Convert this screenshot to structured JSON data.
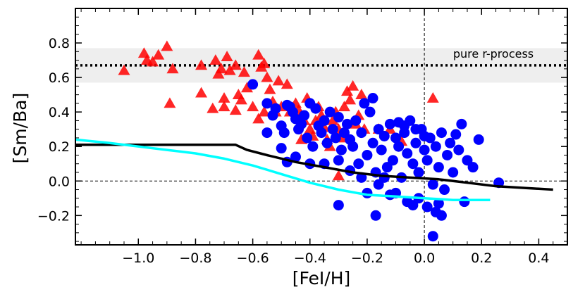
{
  "chart_data": {
    "type": "scatter",
    "xlabel": "[FeI/H]",
    "ylabel": "[Sm/Ba]",
    "xlim": [
      -1.22,
      0.5
    ],
    "ylim": [
      -0.37,
      1.0
    ],
    "x_ticks": [
      -1.0,
      -0.8,
      -0.6,
      -0.4,
      -0.2,
      0.0,
      0.2,
      0.4
    ],
    "x_tick_labels": [
      "−1.0",
      "−0.8",
      "−0.6",
      "−0.4",
      "−0.2",
      "0.0",
      "0.2",
      "0.4"
    ],
    "y_ticks": [
      -0.2,
      0.0,
      0.2,
      0.4,
      0.6,
      0.8
    ],
    "y_tick_labels": [
      "−0.2",
      "0.0",
      "0.2",
      "0.4",
      "0.6",
      "0.8"
    ],
    "grid": false,
    "reference_lines": {
      "horizontal": 0.0,
      "vertical": 0.0
    },
    "band": {
      "y_low": 0.57,
      "y_high": 0.77,
      "color": "#eeeeee"
    },
    "pure_r_process": {
      "y": 0.67,
      "label": "pure r-process"
    },
    "colors": {
      "circles": "#0000ff",
      "triangles": "#ff0000",
      "black_curve": "#000000",
      "cyan_curve": "#00ffff"
    },
    "series": [
      {
        "marker": "triangle",
        "points": [
          [
            -1.05,
            0.64
          ],
          [
            -0.98,
            0.74
          ],
          [
            -0.97,
            0.7
          ],
          [
            -0.95,
            0.69
          ],
          [
            -0.93,
            0.73
          ],
          [
            -0.9,
            0.78
          ],
          [
            -0.88,
            0.65
          ],
          [
            -0.89,
            0.45
          ],
          [
            -0.78,
            0.67
          ],
          [
            -0.78,
            0.51
          ],
          [
            -0.73,
            0.7
          ],
          [
            -0.72,
            0.62
          ],
          [
            -0.71,
            0.65
          ],
          [
            -0.7,
            0.48
          ],
          [
            -0.69,
            0.72
          ],
          [
            -0.68,
            0.64
          ],
          [
            -0.66,
            0.67
          ],
          [
            -0.65,
            0.5
          ],
          [
            -0.64,
            0.47
          ],
          [
            -0.63,
            0.63
          ],
          [
            -0.62,
            0.54
          ],
          [
            -0.58,
            0.73
          ],
          [
            -0.57,
            0.66
          ],
          [
            -0.56,
            0.68
          ],
          [
            -0.55,
            0.6
          ],
          [
            -0.54,
            0.53
          ],
          [
            -0.53,
            0.46
          ],
          [
            -0.52,
            0.4
          ],
          [
            -0.51,
            0.58
          ],
          [
            -0.5,
            0.43
          ],
          [
            -0.48,
            0.56
          ],
          [
            -0.45,
            0.45
          ],
          [
            -0.44,
            0.41
          ],
          [
            -0.43,
            0.38
          ],
          [
            -0.42,
            0.35
          ],
          [
            -0.41,
            0.48
          ],
          [
            -0.4,
            0.3
          ],
          [
            -0.39,
            0.26
          ],
          [
            -0.38,
            0.35
          ],
          [
            -0.37,
            0.43
          ],
          [
            -0.36,
            0.38
          ],
          [
            -0.35,
            0.31
          ],
          [
            -0.34,
            0.24
          ],
          [
            -0.33,
            0.2
          ],
          [
            -0.32,
            0.35
          ],
          [
            -0.31,
            0.4
          ],
          [
            -0.3,
            0.3
          ],
          [
            -0.29,
            0.25
          ],
          [
            -0.28,
            0.43
          ],
          [
            -0.27,
            0.52
          ],
          [
            -0.26,
            0.47
          ],
          [
            -0.25,
            0.55
          ],
          [
            -0.24,
            0.33
          ],
          [
            -0.23,
            0.38
          ],
          [
            -0.22,
            0.5
          ],
          [
            -0.21,
            0.3
          ],
          [
            -0.7,
            0.43
          ],
          [
            -0.74,
            0.42
          ],
          [
            -0.66,
            0.41
          ],
          [
            -0.6,
            0.43
          ],
          [
            -0.58,
            0.36
          ],
          [
            -0.56,
            0.4
          ],
          [
            -0.47,
            0.4
          ],
          [
            -0.43,
            0.24
          ],
          [
            -0.3,
            0.03
          ],
          [
            -0.16,
            0.3
          ],
          [
            -0.12,
            0.3
          ],
          [
            -0.08,
            0.23
          ],
          [
            0.03,
            0.48
          ]
        ]
      },
      {
        "marker": "circle",
        "points": [
          [
            -0.6,
            0.56
          ],
          [
            -0.55,
            0.45
          ],
          [
            -0.53,
            0.38
          ],
          [
            -0.52,
            0.42
          ],
          [
            -0.5,
            0.32
          ],
          [
            -0.49,
            0.28
          ],
          [
            -0.48,
            0.44
          ],
          [
            -0.47,
            0.43
          ],
          [
            -0.46,
            0.4
          ],
          [
            -0.45,
            0.36
          ],
          [
            -0.44,
            0.3
          ],
          [
            -0.43,
            0.33
          ],
          [
            -0.42,
            0.38
          ],
          [
            -0.41,
            0.25
          ],
          [
            -0.4,
            0.45
          ],
          [
            -0.39,
            0.2
          ],
          [
            -0.38,
            0.42
          ],
          [
            -0.37,
            0.32
          ],
          [
            -0.36,
            0.28
          ],
          [
            -0.35,
            0.35
          ],
          [
            -0.34,
            0.22
          ],
          [
            -0.33,
            0.4
          ],
          [
            -0.32,
            0.3
          ],
          [
            -0.31,
            0.25
          ],
          [
            -0.3,
            0.37
          ],
          [
            -0.29,
            0.18
          ],
          [
            -0.28,
            0.28
          ],
          [
            -0.27,
            0.33
          ],
          [
            -0.26,
            0.24
          ],
          [
            -0.25,
            0.2
          ],
          [
            -0.24,
            0.35
          ],
          [
            -0.23,
            0.1
          ],
          [
            -0.22,
            0.28
          ],
          [
            -0.21,
            0.45
          ],
          [
            -0.2,
            0.15
          ],
          [
            -0.19,
            0.4
          ],
          [
            -0.18,
            0.22
          ],
          [
            -0.17,
            0.05
          ],
          [
            -0.16,
            0.3
          ],
          [
            -0.15,
            0.18
          ],
          [
            -0.14,
            0.26
          ],
          [
            -0.13,
            0.08
          ],
          [
            -0.12,
            0.33
          ],
          [
            -0.11,
            0.12
          ],
          [
            -0.1,
            0.25
          ],
          [
            -0.09,
            0.2
          ],
          [
            -0.08,
            0.02
          ],
          [
            -0.07,
            0.28
          ],
          [
            -0.06,
            0.16
          ],
          [
            -0.05,
            0.35
          ],
          [
            -0.04,
            0.1
          ],
          [
            -0.03,
            0.22
          ],
          [
            -0.02,
            0.05
          ],
          [
            -0.01,
            0.3
          ],
          [
            0.0,
            0.18
          ],
          [
            0.01,
            0.12
          ],
          [
            0.02,
            0.25
          ],
          [
            0.03,
            -0.02
          ],
          [
            0.04,
            0.2
          ],
          [
            0.05,
            0.08
          ],
          [
            0.06,
            0.28
          ],
          [
            0.07,
            -0.05
          ],
          [
            0.08,
            0.15
          ],
          [
            0.09,
            0.22
          ],
          [
            0.1,
            0.05
          ],
          [
            0.11,
            0.27
          ],
          [
            0.12,
            0.18
          ],
          [
            0.13,
            0.33
          ],
          [
            0.14,
            -0.12
          ],
          [
            0.15,
            0.12
          ],
          [
            0.17,
            0.08
          ],
          [
            0.19,
            0.24
          ],
          [
            0.26,
            -0.01
          ],
          [
            -0.55,
            0.28
          ],
          [
            -0.5,
            0.19
          ],
          [
            -0.45,
            0.14
          ],
          [
            -0.4,
            0.1
          ],
          [
            -0.48,
            0.11
          ],
          [
            -0.35,
            0.1
          ],
          [
            -0.3,
            0.12
          ],
          [
            -0.26,
            0.06
          ],
          [
            -0.22,
            0.02
          ],
          [
            -0.2,
            -0.07
          ],
          [
            -0.18,
            0.48
          ],
          [
            -0.16,
            -0.02
          ],
          [
            -0.14,
            0.02
          ],
          [
            -0.12,
            -0.08
          ],
          [
            -0.1,
            -0.07
          ],
          [
            -0.06,
            -0.12
          ],
          [
            -0.04,
            -0.14
          ],
          [
            -0.02,
            -0.1
          ],
          [
            0.01,
            -0.15
          ],
          [
            0.04,
            -0.18
          ],
          [
            0.05,
            -0.13
          ],
          [
            0.06,
            -0.2
          ],
          [
            0.03,
            -0.32
          ],
          [
            -0.3,
            -0.14
          ],
          [
            -0.17,
            -0.2
          ],
          [
            -0.03,
            0.3
          ],
          [
            0.0,
            0.26
          ],
          [
            -0.09,
            0.34
          ],
          [
            -0.07,
            0.32
          ]
        ]
      }
    ],
    "lines": [
      {
        "color": "black",
        "points": [
          [
            -1.22,
            0.21
          ],
          [
            -1.0,
            0.21
          ],
          [
            -0.8,
            0.21
          ],
          [
            -0.66,
            0.21
          ],
          [
            -0.62,
            0.18
          ],
          [
            -0.55,
            0.15
          ],
          [
            -0.45,
            0.11
          ],
          [
            -0.35,
            0.08
          ],
          [
            -0.25,
            0.05
          ],
          [
            -0.15,
            0.03
          ],
          [
            -0.05,
            0.02
          ],
          [
            0.05,
            0.01
          ],
          [
            0.15,
            -0.01
          ],
          [
            0.25,
            -0.03
          ],
          [
            0.35,
            -0.04
          ],
          [
            0.45,
            -0.05
          ]
        ]
      },
      {
        "color": "cyan",
        "points": [
          [
            -1.22,
            0.24
          ],
          [
            -1.1,
            0.22
          ],
          [
            -1.0,
            0.2
          ],
          [
            -0.9,
            0.18
          ],
          [
            -0.8,
            0.16
          ],
          [
            -0.7,
            0.13
          ],
          [
            -0.6,
            0.09
          ],
          [
            -0.5,
            0.04
          ],
          [
            -0.4,
            -0.01
          ],
          [
            -0.3,
            -0.05
          ],
          [
            -0.2,
            -0.08
          ],
          [
            -0.1,
            -0.09
          ],
          [
            0.0,
            -0.1
          ],
          [
            0.1,
            -0.11
          ],
          [
            0.23,
            -0.11
          ]
        ]
      }
    ]
  }
}
